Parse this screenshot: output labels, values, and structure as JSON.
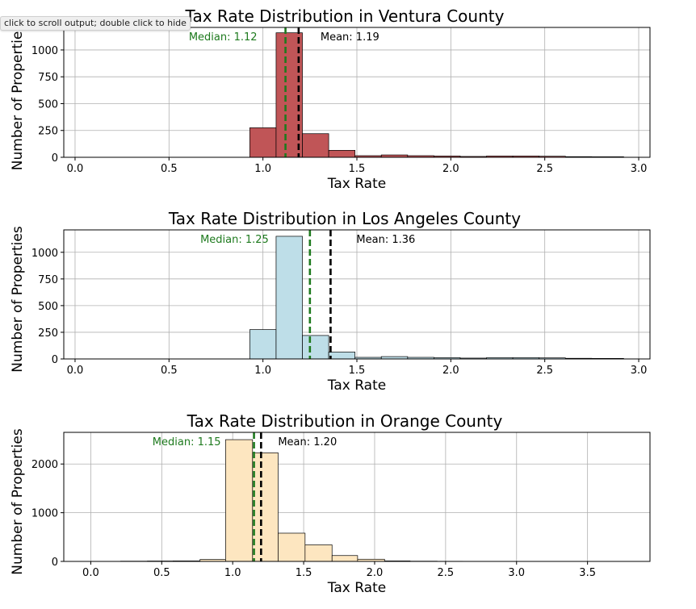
{
  "tooltip": "click to scroll output; double click to hide",
  "colors": {
    "median": "#1e7a1e",
    "mean": "#000000",
    "grid": "#b0b0b0"
  },
  "chart_data": [
    {
      "type": "bar",
      "title": "Tax Rate Distribution in Ventura County",
      "xlabel": "Tax Rate",
      "ylabel": "Number of Properties",
      "color": "#c05557",
      "grid": true,
      "xlim": [
        -0.06,
        3.06
      ],
      "ylim": [
        0,
        1210
      ],
      "xticks": [
        0.0,
        0.5,
        1.0,
        1.5,
        2.0,
        2.5,
        3.0
      ],
      "xtick_labels": [
        "0.0",
        "0.5",
        "1.0",
        "1.5",
        "2.0",
        "2.5",
        "3.0"
      ],
      "yticks": [
        0,
        250,
        500,
        750,
        1000
      ],
      "ytick_labels": [
        "0",
        "250",
        "500",
        "750",
        "1000"
      ],
      "bin_edges": [
        0.93,
        1.07,
        1.21,
        1.35,
        1.49,
        1.63,
        1.77,
        1.91,
        2.05,
        2.19,
        2.33,
        2.47,
        2.61,
        2.75,
        2.92
      ],
      "counts": [
        275,
        1160,
        220,
        65,
        15,
        22,
        15,
        12,
        8,
        12,
        12,
        10,
        6,
        5
      ],
      "median": 1.12,
      "mean": 1.19,
      "median_label": "Median: 1.12",
      "mean_label": "Mean: 1.19"
    },
    {
      "type": "bar",
      "title": "Tax Rate Distribution in Los Angeles County",
      "xlabel": "Tax Rate",
      "ylabel": "Number of Properties",
      "color": "#bedee8",
      "grid": true,
      "xlim": [
        -0.06,
        3.06
      ],
      "ylim": [
        0,
        1210
      ],
      "xticks": [
        0.0,
        0.5,
        1.0,
        1.5,
        2.0,
        2.5,
        3.0
      ],
      "xtick_labels": [
        "0.0",
        "0.5",
        "1.0",
        "1.5",
        "2.0",
        "2.5",
        "3.0"
      ],
      "yticks": [
        0,
        250,
        500,
        750,
        1000
      ],
      "ytick_labels": [
        "0",
        "250",
        "500",
        "750",
        "1000"
      ],
      "bin_edges": [
        0.93,
        1.07,
        1.21,
        1.35,
        1.49,
        1.63,
        1.77,
        1.91,
        2.05,
        2.19,
        2.33,
        2.47,
        2.61,
        2.75,
        2.92
      ],
      "counts": [
        275,
        1150,
        220,
        65,
        15,
        22,
        15,
        12,
        8,
        12,
        12,
        10,
        6,
        5
      ],
      "median": 1.25,
      "mean": 1.36,
      "median_label": "Median: 1.25",
      "mean_label": "Mean: 1.36"
    },
    {
      "type": "bar",
      "title": "Tax Rate Distribution in Orange County",
      "xlabel": "Tax Rate",
      "ylabel": "Number of Properties",
      "color": "#fde6c0",
      "grid": true,
      "xlim": [
        -0.19,
        3.94
      ],
      "ylim": [
        0,
        2650
      ],
      "xticks": [
        0.0,
        0.5,
        1.0,
        1.5,
        2.0,
        2.5,
        3.0,
        3.5
      ],
      "xtick_labels": [
        "0.0",
        "0.5",
        "1.0",
        "1.5",
        "2.0",
        "2.5",
        "3.0",
        "3.5"
      ],
      "yticks": [
        0,
        1000,
        2000
      ],
      "ytick_labels": [
        "0",
        "1000",
        "2000"
      ],
      "bin_edges": [
        0.21,
        0.4,
        0.58,
        0.77,
        0.95,
        1.14,
        1.32,
        1.51,
        1.7,
        1.88,
        2.07,
        2.25,
        2.44,
        2.62
      ],
      "counts": [
        5,
        8,
        10,
        40,
        2500,
        2230,
        580,
        340,
        120,
        45,
        10,
        5,
        3
      ],
      "median": 1.15,
      "mean": 1.2,
      "median_label": "Median: 1.15",
      "mean_label": "Mean: 1.20"
    }
  ]
}
